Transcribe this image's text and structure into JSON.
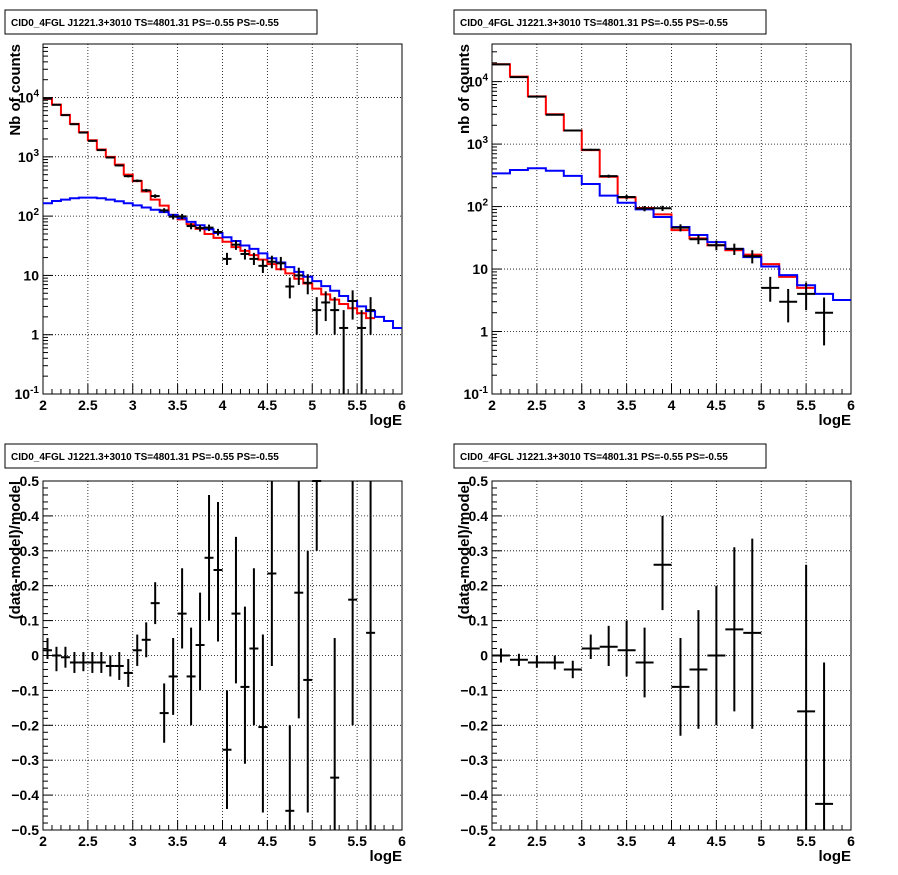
{
  "chart_data": [
    {
      "type": "histogram",
      "title": "CID0_4FGL J1221.3+3010 TS=4801.31 PS=-0.55 PS=-0.55",
      "xlabel": "logE",
      "ylabel": "Nb of counts",
      "xlim": [
        2,
        6
      ],
      "ylim": [
        0.1,
        80000
      ],
      "yscale": "log",
      "grid": true,
      "xticks": [
        "2",
        "2.5",
        "3",
        "3.5",
        "4",
        "4.5",
        "5",
        "5.5",
        "6"
      ],
      "yticks": [
        {
          "v": 0.1,
          "label": "10^-1"
        },
        {
          "v": 1,
          "label": "1"
        },
        {
          "v": 10,
          "label": "10"
        },
        {
          "v": 100,
          "label": "10^2"
        },
        {
          "v": 1000,
          "label": "10^3"
        },
        {
          "v": 10000,
          "label": "10^4"
        }
      ],
      "bin_edges": [
        2.0,
        2.1,
        2.2,
        2.3,
        2.4,
        2.5,
        2.6,
        2.7,
        2.8,
        2.9,
        3.0,
        3.1,
        3.2,
        3.3,
        3.4,
        3.5,
        3.6,
        3.7,
        3.8,
        3.9,
        4.0,
        4.1,
        4.2,
        4.3,
        4.4,
        4.5,
        4.6,
        4.7,
        4.8,
        4.9,
        5.0,
        5.1,
        5.2,
        5.3,
        5.4,
        5.5,
        5.6,
        5.7,
        5.8,
        5.9,
        6.0
      ],
      "series": [
        {
          "color": "#ff0000",
          "style": "step",
          "xmax": 5.7,
          "values": [
            9500,
            7600,
            5100,
            3600,
            2600,
            1900,
            1330,
            1000,
            740,
            500,
            390,
            260,
            190,
            150,
            105,
            88,
            73,
            61,
            50,
            43,
            37,
            30,
            26,
            22,
            18.5,
            15.5,
            12.7,
            10.8,
            8.8,
            7.3,
            6.0,
            4.8,
            3.9,
            3.3,
            2.8,
            2.3,
            1.9
          ]
        },
        {
          "color": "#0000ff",
          "style": "step",
          "values": [
            165,
            180,
            190,
            200,
            205,
            205,
            200,
            190,
            178,
            165,
            152,
            140,
            128,
            117,
            105,
            92,
            80,
            70,
            60,
            52,
            44,
            38,
            32,
            28,
            23.5,
            19.5,
            16.5,
            13.8,
            11.5,
            9.5,
            8.0,
            6.6,
            5.5,
            4.5,
            3.7,
            3.0,
            2.5,
            2.0,
            1.7,
            1.3,
            1.05
          ]
        }
      ],
      "points": [
        {
          "x": 2.05,
          "y": 9600,
          "ylo": 9400,
          "yhi": 9800
        },
        {
          "x": 2.15,
          "y": 7550,
          "ylo": 7450,
          "yhi": 7650
        },
        {
          "x": 2.25,
          "y": 5050,
          "ylo": 4950,
          "yhi": 5150
        },
        {
          "x": 2.35,
          "y": 3550,
          "ylo": 3450,
          "yhi": 3650
        },
        {
          "x": 2.45,
          "y": 2570,
          "ylo": 2500,
          "yhi": 2640
        },
        {
          "x": 2.55,
          "y": 1860,
          "ylo": 1800,
          "yhi": 1920
        },
        {
          "x": 2.65,
          "y": 1300,
          "ylo": 1250,
          "yhi": 1350
        },
        {
          "x": 2.75,
          "y": 975,
          "ylo": 945,
          "yhi": 1005
        },
        {
          "x": 2.85,
          "y": 715,
          "ylo": 690,
          "yhi": 740
        },
        {
          "x": 2.95,
          "y": 472,
          "ylo": 450,
          "yhi": 494
        },
        {
          "x": 3.05,
          "y": 395,
          "ylo": 375,
          "yhi": 415
        },
        {
          "x": 3.15,
          "y": 272,
          "ylo": 256,
          "yhi": 288
        },
        {
          "x": 3.25,
          "y": 218,
          "ylo": 203,
          "yhi": 233
        },
        {
          "x": 3.35,
          "y": 125,
          "ylo": 114,
          "yhi": 136
        },
        {
          "x": 3.45,
          "y": 98,
          "ylo": 88,
          "yhi": 108
        },
        {
          "x": 3.55,
          "y": 99,
          "ylo": 89,
          "yhi": 109
        },
        {
          "x": 3.65,
          "y": 68,
          "ylo": 60,
          "yhi": 76
        },
        {
          "x": 3.75,
          "y": 63,
          "ylo": 55,
          "yhi": 71
        },
        {
          "x": 3.85,
          "y": 64,
          "ylo": 56,
          "yhi": 72
        },
        {
          "x": 3.95,
          "y": 54,
          "ylo": 47,
          "yhi": 61
        },
        {
          "x": 4.05,
          "y": 19,
          "ylo": 15,
          "yhi": 24
        },
        {
          "x": 4.15,
          "y": 33,
          "ylo": 27,
          "yhi": 39
        },
        {
          "x": 4.25,
          "y": 23,
          "ylo": 18.5,
          "yhi": 28
        },
        {
          "x": 4.35,
          "y": 19,
          "ylo": 15,
          "yhi": 24
        },
        {
          "x": 4.45,
          "y": 14.5,
          "ylo": 11,
          "yhi": 18.5
        },
        {
          "x": 4.55,
          "y": 17,
          "ylo": 13.2,
          "yhi": 21.5
        },
        {
          "x": 4.65,
          "y": 16,
          "ylo": 12.2,
          "yhi": 20.5
        },
        {
          "x": 4.75,
          "y": 6.5,
          "ylo": 4.1,
          "yhi": 9.2
        },
        {
          "x": 4.85,
          "y": 10,
          "ylo": 6.9,
          "yhi": 13.5
        },
        {
          "x": 4.95,
          "y": 7.5,
          "ylo": 4.8,
          "yhi": 10.5
        },
        {
          "x": 5.05,
          "y": 2.6,
          "ylo": 1.0,
          "yhi": 4.3
        },
        {
          "x": 5.15,
          "y": 3.5,
          "ylo": 1.7,
          "yhi": 5.4
        },
        {
          "x": 5.25,
          "y": 2.6,
          "ylo": 1.0,
          "yhi": 4.3
        },
        {
          "x": 5.35,
          "y": 1.3,
          "ylo": 0.1,
          "yhi": 2.6
        },
        {
          "x": 5.45,
          "y": 3.7,
          "ylo": 1.8,
          "yhi": 5.6
        },
        {
          "x": 5.55,
          "y": 1.3,
          "ylo": 0.1,
          "yhi": 2.6
        },
        {
          "x": 5.65,
          "y": 2.6,
          "ylo": 1.0,
          "yhi": 4.3
        }
      ]
    },
    {
      "type": "histogram",
      "title": "CID0_4FGL J1221.3+3010 TS=4801.31 PS=-0.55 PS=-0.55",
      "xlabel": "logE",
      "ylabel": "nb of counts",
      "xlim": [
        2,
        6
      ],
      "ylim": [
        0.1,
        40000
      ],
      "yscale": "log",
      "grid": true,
      "xticks": [
        "2",
        "2.5",
        "3",
        "3.5",
        "4",
        "4.5",
        "5",
        "5.5",
        "6"
      ],
      "yticks": [
        {
          "v": 0.1,
          "label": "10^-1"
        },
        {
          "v": 1,
          "label": "1"
        },
        {
          "v": 10,
          "label": "10"
        },
        {
          "v": 100,
          "label": "10^2"
        },
        {
          "v": 1000,
          "label": "10^3"
        },
        {
          "v": 10000,
          "label": "10^4"
        }
      ],
      "bin_edges": [
        2.0,
        2.2,
        2.4,
        2.6,
        2.8,
        3.0,
        3.2,
        3.4,
        3.6,
        3.8,
        4.0,
        4.2,
        4.4,
        4.6,
        4.8,
        5.0,
        5.2,
        5.4,
        5.6,
        5.8,
        6.0
      ],
      "series": [
        {
          "color": "#ff0000",
          "style": "step",
          "xmax": 5.6,
          "values": [
            19000,
            12000,
            5800,
            3000,
            1650,
            800,
            300,
            140,
            95,
            75,
            42,
            31,
            24,
            20,
            17,
            12,
            7.5,
            5.0,
            4.0
          ]
        },
        {
          "color": "#0000ff",
          "style": "step",
          "values": [
            340,
            385,
            410,
            375,
            310,
            230,
            150,
            115,
            90,
            68,
            47,
            35,
            27,
            21,
            15.5,
            11,
            8.0,
            5.5,
            4.0,
            3.2
          ]
        }
      ],
      "points": [
        {
          "x": 2.1,
          "y": 18900,
          "ylo": 18700,
          "yhi": 19100
        },
        {
          "x": 2.3,
          "y": 11800,
          "ylo": 11650,
          "yhi": 11950
        },
        {
          "x": 2.5,
          "y": 5750,
          "ylo": 5650,
          "yhi": 5850
        },
        {
          "x": 2.7,
          "y": 2950,
          "ylo": 2880,
          "yhi": 3020
        },
        {
          "x": 2.9,
          "y": 1650,
          "ylo": 1600,
          "yhi": 1700
        },
        {
          "x": 3.1,
          "y": 810,
          "ylo": 780,
          "yhi": 840
        },
        {
          "x": 3.3,
          "y": 307,
          "ylo": 290,
          "yhi": 324
        },
        {
          "x": 3.5,
          "y": 142,
          "ylo": 130,
          "yhi": 154
        },
        {
          "x": 3.7,
          "y": 93,
          "ylo": 84,
          "yhi": 102
        },
        {
          "x": 3.9,
          "y": 94,
          "ylo": 85,
          "yhi": 103
        },
        {
          "x": 4.1,
          "y": 46,
          "ylo": 40,
          "yhi": 52
        },
        {
          "x": 4.3,
          "y": 30,
          "ylo": 25,
          "yhi": 35
        },
        {
          "x": 4.5,
          "y": 24,
          "ylo": 20,
          "yhi": 28.5
        },
        {
          "x": 4.7,
          "y": 21,
          "ylo": 16.8,
          "yhi": 25.5
        },
        {
          "x": 4.9,
          "y": 16,
          "ylo": 12.3,
          "yhi": 20
        },
        {
          "x": 5.1,
          "y": 5.0,
          "ylo": 3.0,
          "yhi": 7.5
        },
        {
          "x": 5.3,
          "y": 3.0,
          "ylo": 1.4,
          "yhi": 4.8
        },
        {
          "x": 5.5,
          "y": 4.0,
          "ylo": 2.2,
          "yhi": 6.1
        },
        {
          "x": 5.7,
          "y": 2.0,
          "ylo": 0.6,
          "yhi": 3.5
        }
      ]
    },
    {
      "type": "scatter",
      "title": "CID0_4FGL J1221.3+3010 TS=4801.31 PS=-0.55 PS=-0.55",
      "xlabel": "logE",
      "ylabel": "(data-model)/model",
      "xlim": [
        2,
        6
      ],
      "ylim": [
        -0.5,
        0.5
      ],
      "yscale": "linear",
      "grid": true,
      "xticks": [
        "2",
        "2.5",
        "3",
        "3.5",
        "4",
        "4.5",
        "5",
        "5.5",
        "6"
      ],
      "yticks": [
        {
          "v": -0.5,
          "label": "−0.5"
        },
        {
          "v": -0.4,
          "label": "−0.4"
        },
        {
          "v": -0.3,
          "label": "−0.3"
        },
        {
          "v": -0.2,
          "label": "−0.2"
        },
        {
          "v": -0.1,
          "label": "−0.1"
        },
        {
          "v": 0,
          "label": "0"
        },
        {
          "v": 0.1,
          "label": "0.1"
        },
        {
          "v": 0.2,
          "label": "0.2"
        },
        {
          "v": 0.3,
          "label": "0.3"
        },
        {
          "v": 0.4,
          "label": "0.4"
        },
        {
          "v": 0.5,
          "label": "0.5"
        }
      ],
      "points": [
        {
          "x": 2.05,
          "y": 0.015,
          "ylo": -0.01,
          "yhi": 0.05
        },
        {
          "x": 2.15,
          "y": 0.0,
          "ylo": -0.045,
          "yhi": 0.025
        },
        {
          "x": 2.25,
          "y": -0.005,
          "ylo": -0.035,
          "yhi": 0.025
        },
        {
          "x": 2.35,
          "y": -0.02,
          "ylo": -0.05,
          "yhi": 0.01
        },
        {
          "x": 2.45,
          "y": -0.02,
          "ylo": -0.045,
          "yhi": 0.01
        },
        {
          "x": 2.55,
          "y": -0.02,
          "ylo": -0.05,
          "yhi": 0.01
        },
        {
          "x": 2.65,
          "y": -0.02,
          "ylo": -0.05,
          "yhi": 0.01
        },
        {
          "x": 2.75,
          "y": -0.03,
          "ylo": -0.06,
          "yhi": 0.0
        },
        {
          "x": 2.85,
          "y": -0.03,
          "ylo": -0.07,
          "yhi": 0.01
        },
        {
          "x": 2.95,
          "y": -0.05,
          "ylo": -0.09,
          "yhi": -0.01
        },
        {
          "x": 3.05,
          "y": 0.015,
          "ylo": -0.03,
          "yhi": 0.06
        },
        {
          "x": 3.15,
          "y": 0.045,
          "ylo": -0.005,
          "yhi": 0.095
        },
        {
          "x": 3.25,
          "y": 0.15,
          "ylo": 0.09,
          "yhi": 0.21
        },
        {
          "x": 3.35,
          "y": -0.165,
          "ylo": -0.25,
          "yhi": -0.08
        },
        {
          "x": 3.45,
          "y": -0.06,
          "ylo": -0.17,
          "yhi": 0.05
        },
        {
          "x": 3.55,
          "y": 0.12,
          "ylo": 0.02,
          "yhi": 0.25
        },
        {
          "x": 3.65,
          "y": -0.06,
          "ylo": -0.2,
          "yhi": 0.08
        },
        {
          "x": 3.75,
          "y": 0.03,
          "ylo": -0.1,
          "yhi": 0.18
        },
        {
          "x": 3.85,
          "y": 0.28,
          "ylo": 0.1,
          "yhi": 0.46
        },
        {
          "x": 3.95,
          "y": 0.245,
          "ylo": 0.04,
          "yhi": 0.44
        },
        {
          "x": 4.05,
          "y": -0.27,
          "ylo": -0.44,
          "yhi": -0.1
        },
        {
          "x": 4.15,
          "y": 0.12,
          "ylo": -0.08,
          "yhi": 0.34
        },
        {
          "x": 4.25,
          "y": -0.09,
          "ylo": -0.31,
          "yhi": 0.14
        },
        {
          "x": 4.35,
          "y": 0.02,
          "ylo": -0.2,
          "yhi": 0.25
        },
        {
          "x": 4.45,
          "y": -0.205,
          "ylo": -0.45,
          "yhi": 0.06
        },
        {
          "x": 4.55,
          "y": 0.235,
          "ylo": -0.03,
          "yhi": 0.5
        },
        {
          "x": 4.75,
          "y": -0.445,
          "ylo": -0.5,
          "yhi": -0.2
        },
        {
          "x": 4.85,
          "y": 0.18,
          "ylo": -0.18,
          "yhi": 0.5
        },
        {
          "x": 4.95,
          "y": -0.07,
          "ylo": -0.45,
          "yhi": 0.3
        },
        {
          "x": 5.05,
          "y": 0.5,
          "ylo": 0.3,
          "yhi": 0.5
        },
        {
          "x": 5.25,
          "y": -0.35,
          "ylo": -0.5,
          "yhi": 0.05
        },
        {
          "x": 5.45,
          "y": 0.16,
          "ylo": -0.2,
          "yhi": 0.5
        },
        {
          "x": 5.65,
          "y": 0.065,
          "ylo": -0.5,
          "yhi": 0.5
        }
      ]
    },
    {
      "type": "scatter",
      "title": "CID0_4FGL J1221.3+3010 TS=4801.31 PS=-0.55 PS=-0.55",
      "xlabel": "logE",
      "ylabel": "(data-model)/model",
      "xlim": [
        2,
        6
      ],
      "ylim": [
        -0.5,
        0.5
      ],
      "yscale": "linear",
      "grid": true,
      "xticks": [
        "2",
        "2.5",
        "3",
        "3.5",
        "4",
        "4.5",
        "5",
        "5.5",
        "6"
      ],
      "yticks": [
        {
          "v": -0.5,
          "label": "−0.5"
        },
        {
          "v": -0.4,
          "label": "−0.4"
        },
        {
          "v": -0.3,
          "label": "−0.3"
        },
        {
          "v": -0.2,
          "label": "−0.2"
        },
        {
          "v": -0.1,
          "label": "−0.1"
        },
        {
          "v": 0,
          "label": "0"
        },
        {
          "v": 0.1,
          "label": "0.1"
        },
        {
          "v": 0.2,
          "label": "0.2"
        },
        {
          "v": 0.3,
          "label": "0.3"
        },
        {
          "v": 0.4,
          "label": "0.4"
        },
        {
          "v": 0.5,
          "label": "0.5"
        }
      ],
      "points": [
        {
          "x": 2.1,
          "y": 0.0,
          "ylo": -0.02,
          "yhi": 0.02
        },
        {
          "x": 2.3,
          "y": -0.012,
          "ylo": -0.03,
          "yhi": 0.005
        },
        {
          "x": 2.5,
          "y": -0.02,
          "ylo": -0.035,
          "yhi": 0.0
        },
        {
          "x": 2.7,
          "y": -0.02,
          "ylo": -0.04,
          "yhi": 0.0
        },
        {
          "x": 2.9,
          "y": -0.04,
          "ylo": -0.065,
          "yhi": -0.015
        },
        {
          "x": 3.1,
          "y": 0.02,
          "ylo": -0.01,
          "yhi": 0.06
        },
        {
          "x": 3.3,
          "y": 0.025,
          "ylo": -0.03,
          "yhi": 0.085
        },
        {
          "x": 3.5,
          "y": 0.015,
          "ylo": -0.06,
          "yhi": 0.1
        },
        {
          "x": 3.7,
          "y": -0.02,
          "ylo": -0.12,
          "yhi": 0.08
        },
        {
          "x": 3.9,
          "y": 0.26,
          "ylo": 0.13,
          "yhi": 0.4
        },
        {
          "x": 4.1,
          "y": -0.09,
          "ylo": -0.23,
          "yhi": 0.05
        },
        {
          "x": 4.3,
          "y": -0.04,
          "ylo": -0.21,
          "yhi": 0.13
        },
        {
          "x": 4.5,
          "y": 0.0,
          "ylo": -0.2,
          "yhi": 0.2
        },
        {
          "x": 4.7,
          "y": 0.075,
          "ylo": -0.16,
          "yhi": 0.31
        },
        {
          "x": 4.9,
          "y": 0.065,
          "ylo": -0.21,
          "yhi": 0.335
        },
        {
          "x": 5.5,
          "y": -0.16,
          "ylo": -0.5,
          "yhi": 0.26
        },
        {
          "x": 5.7,
          "y": -0.425,
          "ylo": -0.5,
          "yhi": -0.02
        }
      ]
    }
  ]
}
